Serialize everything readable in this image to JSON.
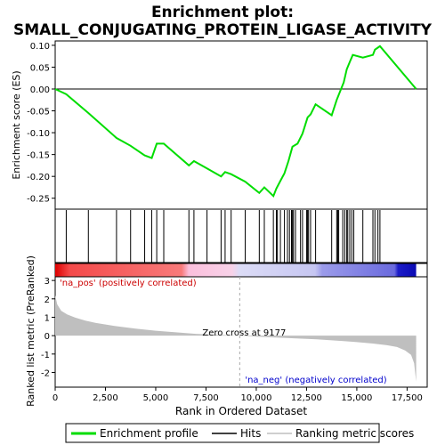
{
  "title_line1": "Enrichment plot:",
  "title_line2": "SMALL_CONJUGATING_PROTEIN_LIGASE_ACTIVITY",
  "colors": {
    "curve": "#00dd00",
    "hits": "#000000",
    "metric_fill": "#bfbfbf",
    "pos_label": "#cc0000",
    "neg_label": "#0000cc"
  },
  "chart_data": [
    {
      "type": "line",
      "panel": "enrichment-score",
      "ylabel": "Enrichment score (ES)",
      "ylim": [
        -0.275,
        0.11
      ],
      "yticks": [
        -0.25,
        -0.2,
        -0.15,
        -0.1,
        -0.05,
        0.0,
        0.05,
        0.1
      ],
      "ytick_labels": [
        "-0.25",
        "-0.20",
        "-0.15",
        "-0.10",
        "-0.05",
        "0.00",
        "0.05",
        "0.10"
      ],
      "xlim": [
        0,
        18500
      ],
      "x": [
        0,
        550,
        1650,
        3050,
        3750,
        4450,
        4800,
        5050,
        5400,
        6650,
        6900,
        7550,
        8250,
        8450,
        8750,
        9450,
        10150,
        10400,
        10850,
        11000,
        11200,
        11400,
        11600,
        11800,
        12050,
        12300,
        12550,
        12700,
        12950,
        13750,
        14000,
        14200,
        14350,
        14500,
        14650,
        14800,
        15300,
        15800,
        15900,
        16150,
        17950
      ],
      "y": [
        0.0,
        -0.012,
        -0.055,
        -0.112,
        -0.13,
        -0.152,
        -0.158,
        -0.125,
        -0.125,
        -0.175,
        -0.165,
        -0.182,
        -0.2,
        -0.19,
        -0.195,
        -0.212,
        -0.238,
        -0.225,
        -0.245,
        -0.228,
        -0.21,
        -0.193,
        -0.165,
        -0.132,
        -0.125,
        -0.102,
        -0.065,
        -0.058,
        -0.035,
        -0.06,
        -0.025,
        -0.002,
        0.015,
        0.045,
        0.062,
        0.078,
        0.072,
        0.078,
        0.09,
        0.098,
        0.0
      ],
      "series": [
        {
          "name": "Enrichment profile"
        }
      ]
    },
    {
      "type": "line",
      "panel": "hits",
      "hit_positions": [
        550,
        1650,
        3050,
        3750,
        4450,
        4800,
        5050,
        5400,
        6650,
        6900,
        7550,
        8250,
        8450,
        8750,
        9450,
        10150,
        10400,
        10850,
        11000,
        11050,
        11200,
        11400,
        11550,
        11650,
        11750,
        11800,
        11850,
        11950,
        12200,
        12300,
        12500,
        12550,
        12600,
        12700,
        12950,
        13750,
        14000,
        14050,
        14100,
        14300,
        14400,
        14500,
        14550,
        14650,
        14750,
        14850,
        15300,
        15800,
        15900,
        16050,
        16150
      ],
      "series": [
        {
          "name": "Hits"
        }
      ]
    },
    {
      "type": "area",
      "panel": "ranked-metric",
      "xlabel": "Rank in Ordered Dataset",
      "ylabel": "Ranked list metric (PreRanked)",
      "xlim": [
        0,
        18500
      ],
      "ylim": [
        -2.8,
        3.2
      ],
      "yticks": [
        -2,
        -1,
        0,
        1,
        2,
        3
      ],
      "ytick_labels": [
        "-2",
        "-1",
        "0",
        "1",
        "2",
        "3"
      ],
      "xticks": [
        0,
        2500,
        5000,
        7500,
        10000,
        12500,
        15000,
        17500
      ],
      "xtick_labels": [
        "0",
        "2,500",
        "5,000",
        "7,500",
        "10,000",
        "12,500",
        "15,000",
        "17,500"
      ],
      "x": [
        0,
        100,
        300,
        600,
        1000,
        1500,
        2000,
        3000,
        4000,
        5000,
        6000,
        7000,
        8000,
        9177,
        10000,
        11000,
        12000,
        13000,
        14000,
        15000,
        15800,
        16500,
        17000,
        17400,
        17700,
        17850,
        17950
      ],
      "y": [
        2.2,
        1.7,
        1.35,
        1.15,
        0.98,
        0.82,
        0.7,
        0.52,
        0.38,
        0.27,
        0.18,
        0.1,
        0.05,
        0.0,
        -0.05,
        -0.1,
        -0.15,
        -0.2,
        -0.27,
        -0.35,
        -0.43,
        -0.52,
        -0.62,
        -0.8,
        -1.05,
        -1.5,
        -2.5
      ],
      "zero_cross": 9177,
      "series": [
        {
          "name": "Ranking metric scores"
        }
      ],
      "annotations": {
        "pos": "'na_pos' (positively correlated)",
        "neg": "'na_neg' (negatively correlated)",
        "zero": "Zero cross at 9177"
      }
    }
  ],
  "legend": {
    "items": [
      {
        "label": "Enrichment profile",
        "kind": "thick-line"
      },
      {
        "label": "Hits",
        "kind": "line"
      },
      {
        "label": "Ranking metric scores",
        "kind": "gray-line"
      }
    ]
  }
}
